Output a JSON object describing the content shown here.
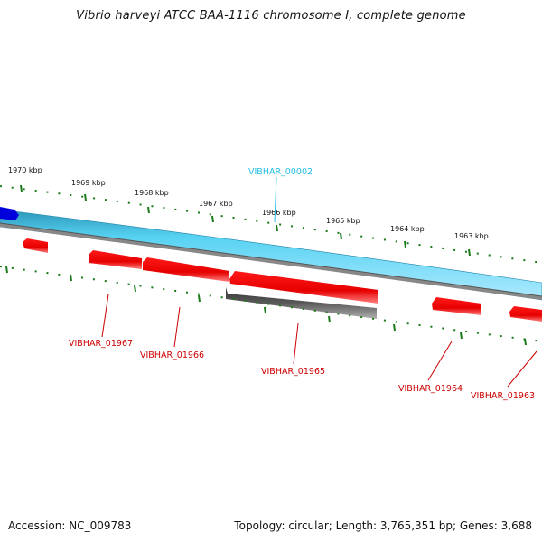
{
  "title": "Vibrio harveyi ATCC BAA-1116 chromosome I, complete genome",
  "footer": {
    "accession": "Accession: NC_009783",
    "summary": "Topology: circular; Length: 3,765,351 bp; Genes: 3,688"
  },
  "scale": {
    "labels": [
      "1970 kbp",
      "1969 kbp",
      "1968 kbp",
      "1967 kbp",
      "1966 kbp",
      "1965 kbp",
      "1964 kbp",
      "1963 kbp"
    ]
  },
  "genes": {
    "forward": "VIBHAR_00002",
    "reverse": [
      "VIBHAR_01967",
      "VIBHAR_01966",
      "VIBHAR_01965",
      "VIBHAR_01964",
      "VIBHAR_01963"
    ]
  },
  "colors": {
    "forward_gene": "#22bde2",
    "reverse_gene": "#cc0000",
    "tick": "#1a7a1a",
    "highlight": "#555555",
    "blue_feature": "#0000dd"
  }
}
